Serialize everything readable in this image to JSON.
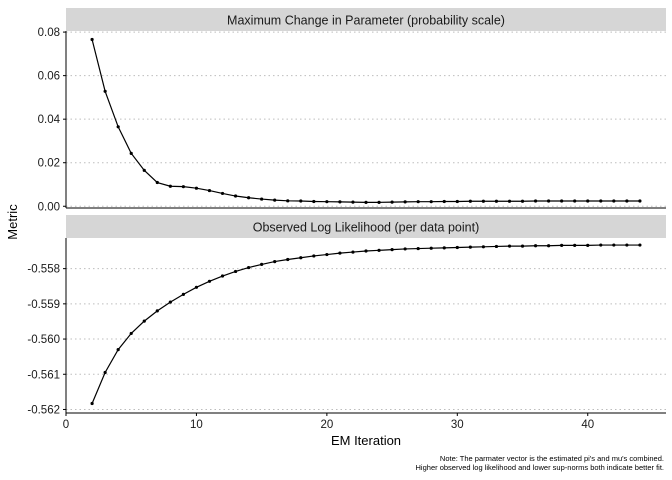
{
  "chart_data": {
    "type": "line",
    "xlabel": "EM Iteration",
    "ylabel": "Metric",
    "xlim": [
      0,
      46
    ],
    "x_ticks": [
      "0",
      "10",
      "20",
      "30",
      "40"
    ],
    "x_tick_values": [
      0,
      10,
      20,
      30,
      40
    ],
    "caption": [
      "Note: The parmater vector is the estimated pi's and mu's combined.",
      "Higher observed log likelihood and lower sup-norms both indicate better fit."
    ],
    "grid": "horizontal dotted",
    "panels": [
      {
        "title": "Maximum Change in Parameter (probability scale)",
        "ylim": [
          -0.0008,
          0.0805
        ],
        "y_ticks": [
          "0.08",
          "0.06",
          "0.04",
          "0.02",
          "0.00"
        ],
        "y_tick_values": [
          0.08,
          0.06,
          0.04,
          0.02,
          0.0
        ],
        "x": [
          2,
          3,
          4,
          5,
          6,
          7,
          8,
          9,
          10,
          11,
          12,
          13,
          14,
          15,
          16,
          17,
          18,
          19,
          20,
          21,
          22,
          23,
          24,
          25,
          26,
          27,
          28,
          29,
          30,
          31,
          32,
          33,
          34,
          35,
          36,
          37,
          38,
          39,
          40,
          41,
          42,
          43,
          44
        ],
        "values": [
          0.0766,
          0.0528,
          0.0365,
          0.0243,
          0.0165,
          0.0109,
          0.0092,
          0.009,
          0.0083,
          0.0072,
          0.0059,
          0.0047,
          0.0039,
          0.0033,
          0.0028,
          0.0025,
          0.0024,
          0.0022,
          0.0021,
          0.002,
          0.0019,
          0.0018,
          0.0018,
          0.0019,
          0.002,
          0.0021,
          0.0021,
          0.0022,
          0.0022,
          0.0023,
          0.0023,
          0.0023,
          0.0023,
          0.0023,
          0.0024,
          0.0024,
          0.0024,
          0.0024,
          0.0024,
          0.0024,
          0.0024,
          0.0024,
          0.0024
        ]
      },
      {
        "title": "Observed Log Likelihood (per data point)",
        "ylim": [
          -0.5621,
          -0.55713
        ],
        "y_ticks": [
          "-0.558",
          "-0.559",
          "-0.560",
          "-0.561",
          "-0.562"
        ],
        "y_tick_values": [
          -0.558,
          -0.559,
          -0.56,
          -0.561,
          -0.562
        ],
        "x": [
          2,
          3,
          4,
          5,
          6,
          7,
          8,
          9,
          10,
          11,
          12,
          13,
          14,
          15,
          16,
          17,
          18,
          19,
          20,
          21,
          22,
          23,
          24,
          25,
          26,
          27,
          28,
          29,
          30,
          31,
          32,
          33,
          34,
          35,
          36,
          37,
          38,
          39,
          40,
          41,
          42,
          43,
          44
        ],
        "values": [
          -0.56183,
          -0.56095,
          -0.5603,
          -0.55984,
          -0.55949,
          -0.5592,
          -0.55895,
          -0.55873,
          -0.55853,
          -0.55836,
          -0.55821,
          -0.55808,
          -0.55797,
          -0.55788,
          -0.5578,
          -0.55774,
          -0.55769,
          -0.55764,
          -0.5576,
          -0.55756,
          -0.55753,
          -0.5575,
          -0.55748,
          -0.55746,
          -0.55744,
          -0.55743,
          -0.55742,
          -0.55741,
          -0.5574,
          -0.55739,
          -0.55738,
          -0.55737,
          -0.55736,
          -0.55736,
          -0.55735,
          -0.55735,
          -0.55734,
          -0.55734,
          -0.55734,
          -0.55733,
          -0.55733,
          -0.55733,
          -0.55733
        ]
      }
    ]
  }
}
